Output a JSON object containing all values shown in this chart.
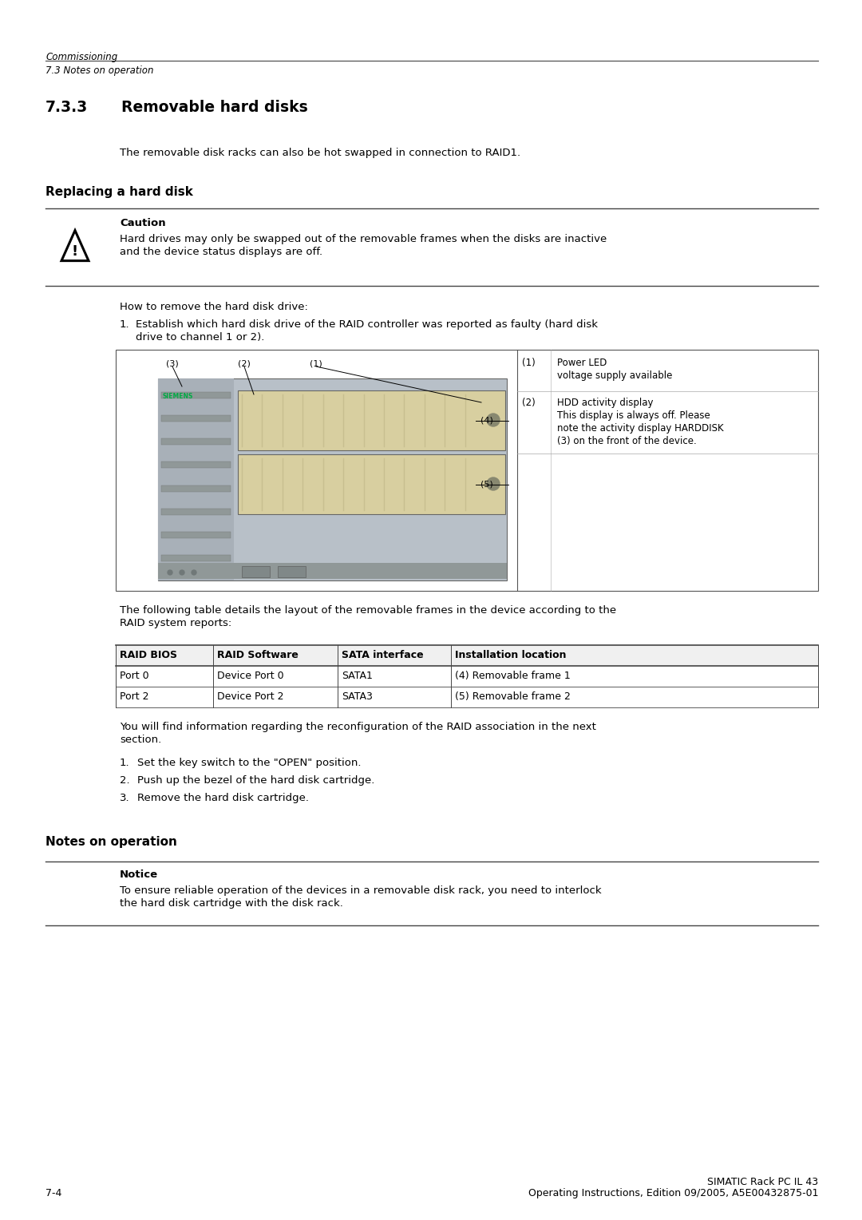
{
  "bg_color": "#ffffff",
  "header_italic1": "Commissioning",
  "header_italic2": "7.3 Notes on operation",
  "section_num": "7.3.3",
  "section_title": "Removable hard disks",
  "intro_text": "The removable disk racks can also be hot swapped in connection to RAID1.",
  "subsection1": "Replacing a hard disk",
  "caution_title": "Caution",
  "caution_text1": "Hard drives may only be swapped out of the removable frames when the disks are inactive",
  "caution_text2": "and the device status displays are off.",
  "how_to_text": "How to remove the hard disk drive:",
  "step1_line1": "Establish which hard disk drive of the RAID controller was reported as faulty (hard disk",
  "step1_line2": "drive to channel 1 or 2).",
  "table_intro_line1": "The following table details the layout of the removable frames in the device according to the",
  "table_intro_line2": "RAID system reports:",
  "table_headers": [
    "RAID BIOS",
    "RAID Software",
    "SATA interface",
    "Installation location"
  ],
  "table_row1": [
    "Port 0",
    "Device Port 0",
    "SATA1",
    "(4) Removable frame 1"
  ],
  "table_row2": [
    "Port 2",
    "Device Port 2",
    "SATA3",
    "(5) Removable frame 2"
  ],
  "para_after_table_l1": "You will find information regarding the reconfiguration of the RAID association in the next",
  "para_after_table_l2": "section.",
  "steps_after_table": [
    "Set the key switch to the \"OPEN\" position.",
    "Push up the bezel of the hard disk cartridge.",
    "Remove the hard disk cartridge."
  ],
  "subsection2": "Notes on operation",
  "notice_title": "Notice",
  "notice_text1": "To ensure reliable operation of the devices in a removable disk rack, you need to interlock",
  "notice_text2": "the hard disk cartridge with the disk rack.",
  "footer_left": "7-4",
  "footer_right1": "SIMATIC Rack PC IL 43",
  "footer_right2": "Operating Instructions, Edition 09/2005, A5E00432875-01",
  "legend_entries": [
    {
      "num": "(1)",
      "text": "Power LED\nvoltage supply available"
    },
    {
      "num": "(2)",
      "text": "HDD activity display\nThis display is always off. Please\nnote the activity display HARDDISK\n(3) on the front of the device."
    }
  ]
}
